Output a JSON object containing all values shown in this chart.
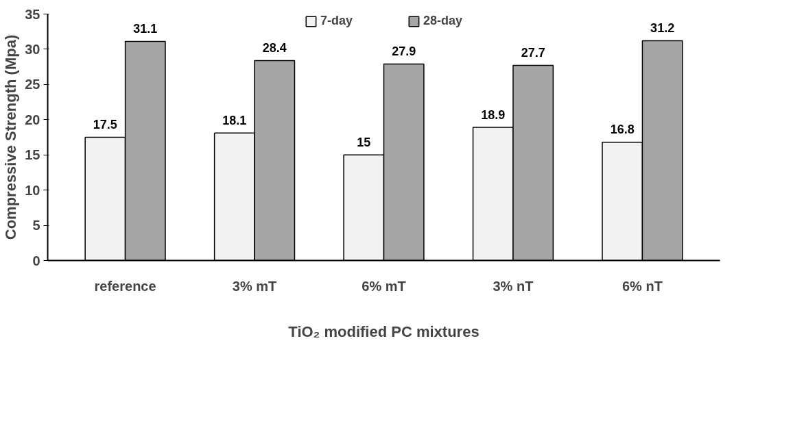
{
  "chart_data": {
    "type": "bar",
    "xlabel": "TiO₂ modified PC mixtures",
    "ylabel": "Compressive Strength (Mpa)",
    "categories": [
      "reference",
      "3% mT",
      "6% mT",
      "3% nT",
      "6% nT"
    ],
    "series": [
      {
        "name": "7-day",
        "color": "#f2f2f2",
        "values": [
          17.5,
          18.1,
          15,
          18.9,
          16.8
        ]
      },
      {
        "name": "28-day",
        "color": "#a6a6a6",
        "values": [
          31.1,
          28.4,
          27.9,
          27.7,
          31.2
        ]
      }
    ],
    "ylim": [
      0,
      35
    ],
    "yticks": [
      0,
      5,
      10,
      15,
      20,
      25,
      30,
      35
    ],
    "grid": false,
    "legend": "top",
    "data_labels": true
  }
}
